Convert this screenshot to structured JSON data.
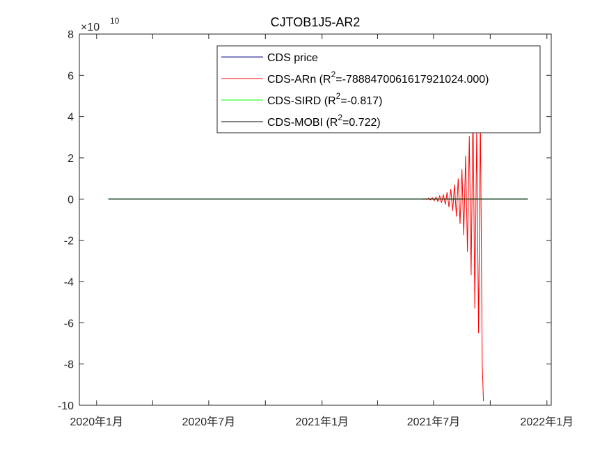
{
  "chart_data": {
    "type": "line",
    "title": "CJTOB1J5-AR2",
    "xlabel": "",
    "ylabel": "",
    "y_exponent_label": "×10",
    "y_exponent_power": "10",
    "y_multiplier": 10000000000,
    "xlim": [
      "2019-12-04",
      "2022-01-08"
    ],
    "ylim": [
      -10,
      8
    ],
    "x_ticks": [
      {
        "date": "2020-01-01",
        "label": "2020年1月"
      },
      {
        "date": "2020-04-01",
        "label": ""
      },
      {
        "date": "2020-07-01",
        "label": "2020年7月"
      },
      {
        "date": "2020-10-01",
        "label": ""
      },
      {
        "date": "2021-01-01",
        "label": "2021年1月"
      },
      {
        "date": "2021-04-01",
        "label": ""
      },
      {
        "date": "2021-07-01",
        "label": "2021年7月"
      },
      {
        "date": "2021-10-01",
        "label": ""
      },
      {
        "date": "2022-01-01",
        "label": "2022年1月"
      }
    ],
    "y_ticks": [
      8,
      6,
      4,
      2,
      0,
      -2,
      -4,
      -6,
      -8,
      -10
    ],
    "y_tick_labels": [
      "8",
      "6",
      "4",
      "2",
      "0",
      "-2",
      "-4",
      "-6",
      "-8",
      "-10"
    ],
    "grid": false,
    "legend_position": "top-right",
    "series": [
      {
        "name": "CDS price",
        "color": "#00007f",
        "x_start": "2020-01-20",
        "x_end": "2021-12-01",
        "values": [
          [
            "2020-01-20",
            0
          ],
          [
            "2021-12-01",
            0
          ]
        ]
      },
      {
        "name": "CDS-ARn",
        "legend_label": "CDS-ARn   (R",
        "legend_sup": "2",
        "legend_tail": "=-7888470061617921024.000)",
        "color": "#ff0000",
        "values": [
          [
            "2021-06-12",
            0.0
          ],
          [
            "2021-06-14",
            -0.02
          ],
          [
            "2021-06-17",
            0.02
          ],
          [
            "2021-06-20",
            -0.03
          ],
          [
            "2021-06-23",
            0.04
          ],
          [
            "2021-06-26",
            -0.05
          ],
          [
            "2021-06-29",
            0.06
          ],
          [
            "2021-07-02",
            -0.08
          ],
          [
            "2021-07-05",
            0.1
          ],
          [
            "2021-07-08",
            -0.12
          ],
          [
            "2021-07-11",
            0.15
          ],
          [
            "2021-07-14",
            -0.18
          ],
          [
            "2021-07-17",
            0.22
          ],
          [
            "2021-07-20",
            -0.27
          ],
          [
            "2021-07-23",
            0.33
          ],
          [
            "2021-07-26",
            -0.4
          ],
          [
            "2021-07-29",
            0.48
          ],
          [
            "2021-08-01",
            -0.58
          ],
          [
            "2021-08-04",
            0.7
          ],
          [
            "2021-08-07",
            -0.85
          ],
          [
            "2021-08-10",
            1.0
          ],
          [
            "2021-08-13",
            -1.2
          ],
          [
            "2021-08-16",
            1.45
          ],
          [
            "2021-08-19",
            -1.75
          ],
          [
            "2021-08-22",
            2.1
          ],
          [
            "2021-08-25",
            -2.55
          ],
          [
            "2021-08-28",
            3.05
          ],
          [
            "2021-08-31",
            -3.7
          ],
          [
            "2021-09-03",
            4.4
          ],
          [
            "2021-09-06",
            -5.3
          ],
          [
            "2021-09-09",
            3.3
          ],
          [
            "2021-09-12",
            -6.5
          ],
          [
            "2021-09-15",
            4.0
          ],
          [
            "2021-09-18",
            -8.0
          ],
          [
            "2021-09-20",
            -9.8
          ]
        ]
      },
      {
        "name": "CDS-SIRD",
        "legend_label": "CDS-SIRD (R",
        "legend_sup": "2",
        "legend_tail": "=-0.817)",
        "color": "#00ff00",
        "values": [
          [
            "2020-01-20",
            0
          ],
          [
            "2021-12-01",
            0
          ]
        ]
      },
      {
        "name": "CDS-MOBI",
        "legend_label": "CDS-MOBI (R",
        "legend_sup": "2",
        "legend_tail": "=0.722)",
        "color": "#000000",
        "values": [
          [
            "2020-01-20",
            0
          ],
          [
            "2021-12-01",
            0
          ]
        ]
      }
    ]
  }
}
